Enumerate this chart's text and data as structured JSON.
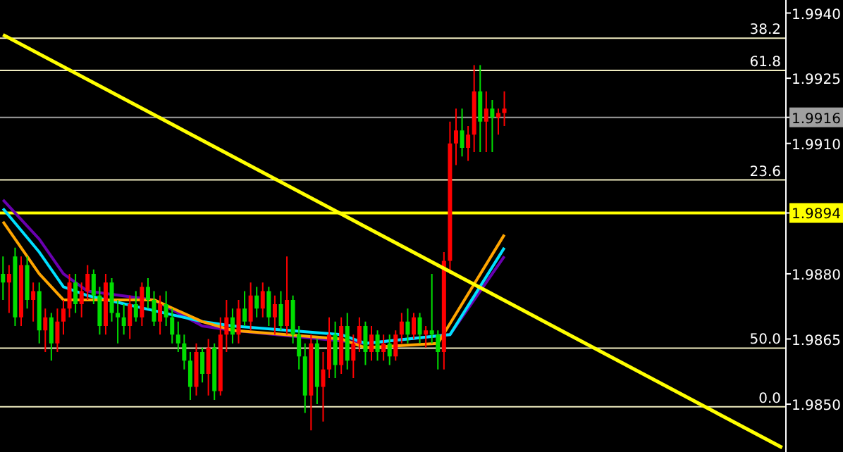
{
  "chart_data": {
    "type": "candlestick",
    "tick_labels": "y",
    "ylim": [
      1.9839,
      1.9943
    ],
    "yticks": [
      {
        "value": 1.994,
        "label": "1.9940"
      },
      {
        "value": 1.9925,
        "label": "1.9925"
      },
      {
        "value": 1.9916,
        "label": "1.9916"
      },
      {
        "value": 1.991,
        "label": "1.9910"
      },
      {
        "value": 1.9894,
        "label": "1.9894"
      },
      {
        "value": 1.988,
        "label": "1.9880"
      },
      {
        "value": 1.9865,
        "label": "1.9865"
      },
      {
        "value": 1.985,
        "label": "1.9850"
      }
    ],
    "categories": [
      null,
      null,
      null,
      null,
      null,
      null,
      null,
      null,
      null,
      null,
      null,
      null,
      null,
      null,
      null,
      null,
      null,
      null,
      null,
      null,
      null,
      null,
      null,
      null,
      null,
      null,
      null,
      null,
      null,
      null,
      null,
      null,
      null,
      null,
      null,
      null,
      null,
      null,
      null,
      null,
      null,
      null,
      null,
      null,
      null,
      null,
      null,
      null,
      null,
      null,
      null,
      null,
      null,
      null,
      null,
      null,
      null,
      null,
      null,
      null,
      null,
      null,
      null,
      null,
      null,
      null,
      null,
      null,
      null,
      null,
      null,
      null,
      null,
      null,
      null,
      null,
      null,
      null,
      null,
      null,
      null,
      null,
      null,
      null,
      null,
      null,
      null,
      null,
      null,
      null,
      null,
      null,
      null,
      null,
      null,
      null,
      null,
      null,
      null,
      null,
      null,
      null,
      null,
      null,
      null,
      null,
      null,
      null,
      null,
      null,
      null,
      null,
      null,
      null,
      null,
      null,
      null,
      null,
      null,
      null,
      null,
      null,
      null,
      null,
      null,
      null,
      null,
      null,
      null,
      null
    ],
    "ohlc": [
      [
        1.988,
        1.9884,
        1.9874,
        1.9878
      ],
      [
        1.9878,
        1.9882,
        1.9871,
        1.988
      ],
      [
        1.9884,
        1.9886,
        1.9868,
        1.987
      ],
      [
        1.987,
        1.9884,
        1.9868,
        1.9882
      ],
      [
        1.9882,
        1.9884,
        1.9872,
        1.9874
      ],
      [
        1.9874,
        1.9878,
        1.9869,
        1.9876
      ],
      [
        1.9876,
        1.9878,
        1.9864,
        1.9867
      ],
      [
        1.9867,
        1.9872,
        1.9862,
        1.987
      ],
      [
        1.987,
        1.9871,
        1.986,
        1.9864
      ],
      [
        1.9864,
        1.9872,
        1.9862,
        1.9869
      ],
      [
        1.9869,
        1.9874,
        1.9866,
        1.9872
      ],
      [
        1.9872,
        1.988,
        1.987,
        1.9878
      ],
      [
        1.9878,
        1.988,
        1.9871,
        1.9873
      ],
      [
        1.9873,
        1.9878,
        1.987,
        1.9876
      ],
      [
        1.9876,
        1.9882,
        1.9874,
        1.988
      ],
      [
        1.988,
        1.9881,
        1.9873,
        1.9875
      ],
      [
        1.9875,
        1.9877,
        1.9866,
        1.9868
      ],
      [
        1.9868,
        1.988,
        1.9866,
        1.9878
      ],
      [
        1.9878,
        1.9879,
        1.9869,
        1.9871
      ],
      [
        1.9871,
        1.9874,
        1.9864,
        1.987
      ],
      [
        1.987,
        1.9873,
        1.9866,
        1.9868
      ],
      [
        1.9868,
        1.9875,
        1.9865,
        1.9873
      ],
      [
        1.9873,
        1.9876,
        1.9869,
        1.987
      ],
      [
        1.987,
        1.9878,
        1.9868,
        1.9877
      ],
      [
        1.9877,
        1.9879,
        1.9872,
        1.9874
      ],
      [
        1.9874,
        1.9876,
        1.9868,
        1.9869
      ],
      [
        1.9869,
        1.9875,
        1.9866,
        1.9873
      ],
      [
        1.9873,
        1.9876,
        1.9868,
        1.987
      ],
      [
        1.987,
        1.9872,
        1.9864,
        1.9866
      ],
      [
        1.9866,
        1.9869,
        1.9862,
        1.9864
      ],
      [
        1.9864,
        1.9866,
        1.9858,
        1.986
      ],
      [
        1.986,
        1.9862,
        1.9851,
        1.9854
      ],
      [
        1.9854,
        1.9864,
        1.9852,
        1.9862
      ],
      [
        1.9862,
        1.9863,
        1.9855,
        1.9857
      ],
      [
        1.9857,
        1.9865,
        1.9852,
        1.9863
      ],
      [
        1.9863,
        1.9864,
        1.9851,
        1.9853
      ],
      [
        1.9853,
        1.987,
        1.9852,
        1.9866
      ],
      [
        1.9866,
        1.9874,
        1.9862,
        1.987
      ],
      [
        1.987,
        1.9872,
        1.9864,
        1.9866
      ],
      [
        1.9866,
        1.9874,
        1.9864,
        1.9872
      ],
      [
        1.9872,
        1.9876,
        1.9868,
        1.9869
      ],
      [
        1.9869,
        1.9878,
        1.9867,
        1.9875
      ],
      [
        1.9875,
        1.9877,
        1.987,
        1.9872
      ],
      [
        1.9872,
        1.9878,
        1.987,
        1.9876
      ],
      [
        1.9876,
        1.9877,
        1.9868,
        1.987
      ],
      [
        1.987,
        1.9875,
        1.9866,
        1.9873
      ],
      [
        1.9873,
        1.9876,
        1.9867,
        1.9868
      ],
      [
        1.9868,
        1.9884,
        1.9866,
        1.9874
      ],
      [
        1.9874,
        1.9875,
        1.9864,
        1.9866
      ],
      [
        1.9866,
        1.9868,
        1.9858,
        1.9861
      ],
      [
        1.9861,
        1.9864,
        1.9848,
        1.9852
      ],
      [
        1.9852,
        1.9866,
        1.9844,
        1.9864
      ],
      [
        1.9864,
        1.9865,
        1.985,
        1.9854
      ],
      [
        1.9854,
        1.9862,
        1.9846,
        1.9858
      ],
      [
        1.9858,
        1.987,
        1.9856,
        1.9866
      ],
      [
        1.9866,
        1.9869,
        1.9856,
        1.9859
      ],
      [
        1.9859,
        1.987,
        1.9857,
        1.9868
      ],
      [
        1.9868,
        1.9871,
        1.9858,
        1.986
      ],
      [
        1.986,
        1.9866,
        1.9856,
        1.9864
      ],
      [
        1.9864,
        1.987,
        1.9862,
        1.9868
      ],
      [
        1.9868,
        1.9869,
        1.9859,
        1.9862
      ],
      [
        1.9862,
        1.9868,
        1.986,
        1.9866
      ],
      [
        1.9866,
        1.9867,
        1.986,
        1.9862
      ],
      [
        1.9862,
        1.9866,
        1.986,
        1.9864
      ],
      [
        1.9864,
        1.9866,
        1.9859,
        1.9861
      ],
      [
        1.9861,
        1.9867,
        1.986,
        1.9866
      ],
      [
        1.9866,
        1.9871,
        1.9864,
        1.9869
      ],
      [
        1.9869,
        1.9872,
        1.9864,
        1.9866
      ],
      [
        1.9866,
        1.9871,
        1.9865,
        1.987
      ],
      [
        1.987,
        1.9871,
        1.9864,
        1.9866
      ],
      [
        1.9866,
        1.9868,
        1.9863,
        1.9867
      ],
      [
        1.9867,
        1.988,
        1.9864,
        1.9866
      ],
      [
        1.9866,
        1.9867,
        1.9858,
        1.9862
      ],
      [
        1.9862,
        1.9885,
        1.9858,
        1.9883
      ],
      [
        1.9883,
        1.9915,
        1.988,
        1.991
      ],
      [
        1.991,
        1.9918,
        1.9905,
        1.9913
      ],
      [
        1.9913,
        1.9918,
        1.9907,
        1.9909
      ],
      [
        1.9909,
        1.9914,
        1.9906,
        1.9912
      ],
      [
        1.9912,
        1.9928,
        1.9908,
        1.9922
      ],
      [
        1.9922,
        1.9928,
        1.9908,
        1.9915
      ],
      [
        1.9915,
        1.9922,
        1.9908,
        1.9918
      ],
      [
        1.9918,
        1.992,
        1.9908,
        1.9916
      ],
      [
        1.9916,
        1.9918,
        1.9912,
        1.9917
      ],
      [
        1.9917,
        1.9922,
        1.9914,
        1.9918
      ],
      null,
      null,
      null,
      null,
      null,
      null,
      null,
      null,
      null,
      null,
      null,
      null,
      null,
      null,
      null,
      null,
      null,
      null,
      null,
      null,
      null,
      null,
      null,
      null,
      null,
      null,
      null,
      null,
      null,
      null,
      null,
      null,
      null,
      null,
      null,
      null,
      null,
      null,
      null,
      null,
      null,
      null,
      null,
      null,
      null,
      null
    ],
    "colors": [
      "#00dd00",
      "#ff0000",
      "#00dd00",
      "#ff0000",
      "#00dd00",
      "#ff0000",
      "#00dd00",
      "#ff0000",
      "#00dd00",
      "#ff0000",
      "#ff0000",
      "#ff0000",
      "#00dd00",
      "#ff0000",
      "#ff0000",
      "#00dd00",
      "#00dd00",
      "#ff0000",
      "#00dd00",
      "#00dd00",
      "#00dd00",
      "#ff0000",
      "#00dd00",
      "#ff0000",
      "#00dd00",
      "#00dd00",
      "#ff0000",
      "#00dd00",
      "#00dd00",
      "#00dd00",
      "#00dd00",
      "#00dd00",
      "#ff0000",
      "#00dd00",
      "#ff0000",
      "#00dd00",
      "#ff0000",
      "#ff0000",
      "#00dd00",
      "#ff0000",
      "#00dd00",
      "#ff0000",
      "#00dd00",
      "#ff0000",
      "#00dd00",
      "#ff0000",
      "#00dd00",
      "#ff0000",
      "#00dd00",
      "#00dd00",
      "#00dd00",
      "#ff0000",
      "#00dd00",
      "#ff0000",
      "#ff0000",
      "#00dd00",
      "#ff0000",
      "#00dd00",
      "#ff0000",
      "#ff0000",
      "#00dd00",
      "#ff0000",
      "#00dd00",
      "#ff0000",
      "#00dd00",
      "#ff0000",
      "#ff0000",
      "#00dd00",
      "#ff0000",
      "#00dd00",
      "#ff0000",
      "#00dd00",
      "#00dd00",
      "#ff0000",
      "#ff0000",
      "#ff0000",
      "#00dd00",
      "#ff0000",
      "#ff0000",
      "#00dd00",
      "#ff0000",
      "#00dd00",
      "#ff0000",
      "#ff0000",
      null,
      null,
      null,
      null,
      null,
      null,
      null,
      null,
      null,
      null,
      null,
      null,
      null,
      null,
      null,
      null,
      null,
      null,
      null,
      null,
      null,
      null,
      null,
      null,
      null,
      null,
      null,
      null,
      null,
      null,
      null,
      null,
      null,
      null,
      null,
      null,
      null,
      null,
      null,
      null,
      null,
      null,
      null,
      null,
      null,
      null
    ],
    "annotations": [
      {
        "text": "38.2",
        "y": 1.99342
      },
      {
        "text": "61.8",
        "y": 1.99268
      },
      {
        "text": "23.6",
        "y": 1.99016
      },
      {
        "text": "50.0",
        "y": 1.98629
      },
      {
        "text": "0.0",
        "y": 1.98494
      }
    ],
    "series": [
      {
        "type": "line",
        "color": "#ffff00",
        "values": [
          1.9935,
          null,
          null,
          null,
          null,
          null,
          null,
          null,
          null,
          null,
          null,
          null,
          null,
          null,
          null,
          null,
          null,
          null,
          null,
          null,
          null,
          null,
          null,
          null,
          null,
          null,
          null,
          null,
          null,
          null,
          null,
          null,
          null,
          null,
          null,
          null,
          null,
          null,
          null,
          null,
          null,
          null,
          null,
          null,
          null,
          null,
          null,
          null,
          null,
          null,
          null,
          null,
          null,
          null,
          null,
          null,
          null,
          null,
          null,
          null,
          null,
          null,
          null,
          null,
          null,
          null,
          null,
          null,
          null,
          null,
          null,
          null,
          null,
          null,
          null,
          null,
          null,
          null,
          null,
          null,
          null,
          null,
          null,
          null,
          null,
          null,
          null,
          null,
          null,
          null,
          null,
          null,
          null,
          null,
          null,
          null,
          null,
          null,
          null,
          null,
          null,
          null,
          null,
          null,
          null,
          null,
          null,
          null,
          null,
          null,
          null,
          null,
          null,
          null,
          null,
          null,
          null,
          null,
          null,
          null,
          null,
          null,
          null,
          null,
          null,
          null,
          null,
          null,
          null,
          1.984
        ]
      },
      {
        "type": "line",
        "color": "#6a00b0",
        "values": [
          1.9897,
          null,
          null,
          null,
          null,
          null,
          1.9888,
          null,
          null,
          null,
          1.988,
          null,
          null,
          null,
          1.9876,
          null,
          null,
          null,
          null,
          null,
          null,
          null,
          null,
          null,
          null,
          1.9874,
          null,
          null,
          null,
          null,
          null,
          null,
          null,
          1.9868,
          null,
          null,
          null,
          null,
          1.9867,
          null,
          null,
          null,
          null,
          null,
          null,
          null,
          null,
          null,
          null,
          null,
          null,
          null,
          null,
          null,
          null,
          null,
          null,
          null,
          null,
          null,
          1.9864,
          null,
          null,
          null,
          null,
          null,
          null,
          null,
          null,
          null,
          null,
          null,
          null,
          null,
          1.9866,
          null,
          null,
          null,
          null,
          null,
          null,
          null,
          null,
          1.9884,
          null,
          null,
          null,
          null,
          null,
          null,
          null,
          null,
          null,
          null,
          null,
          null,
          null,
          null,
          null,
          null,
          null,
          null,
          null,
          null,
          null,
          null,
          null,
          null,
          null,
          null,
          null,
          null,
          null,
          null,
          null,
          null,
          null,
          null,
          null,
          null,
          null,
          null,
          null,
          null,
          null,
          null,
          null,
          null,
          null,
          null
        ]
      },
      {
        "type": "line",
        "color": "#00e0ff",
        "values": [
          1.9895,
          null,
          null,
          null,
          null,
          null,
          1.9885,
          null,
          null,
          null,
          1.9877,
          null,
          null,
          null,
          1.9875,
          null,
          null,
          null,
          null,
          null,
          null,
          null,
          null,
          null,
          null,
          null,
          null,
          null,
          null,
          null,
          null,
          null,
          null,
          1.9869,
          null,
          null,
          null,
          null,
          1.9868,
          null,
          null,
          null,
          null,
          null,
          null,
          null,
          null,
          null,
          null,
          null,
          null,
          null,
          null,
          null,
          null,
          null,
          1.9866,
          null,
          null,
          null,
          1.9864,
          null,
          null,
          null,
          null,
          null,
          null,
          null,
          null,
          null,
          null,
          null,
          null,
          null,
          1.9866,
          null,
          null,
          null,
          null,
          null,
          null,
          null,
          null,
          1.9886,
          null,
          null,
          null,
          null,
          null,
          null,
          null,
          null,
          null,
          null,
          null,
          null,
          null,
          null,
          null,
          null,
          null,
          null,
          null,
          null,
          null,
          null,
          null,
          null,
          null,
          null,
          null,
          null,
          null,
          null,
          null,
          null,
          null,
          null,
          null,
          null,
          null,
          null,
          null,
          null,
          null,
          null,
          null,
          null,
          null,
          null
        ]
      },
      {
        "type": "line",
        "color": "#ffa500",
        "values": [
          1.9892,
          null,
          null,
          null,
          null,
          null,
          1.988,
          null,
          null,
          null,
          1.9874,
          null,
          null,
          null,
          1.9874,
          null,
          null,
          null,
          null,
          null,
          null,
          null,
          null,
          null,
          null,
          1.9874,
          null,
          null,
          null,
          null,
          null,
          null,
          null,
          1.9869,
          null,
          null,
          null,
          null,
          1.9867,
          null,
          null,
          null,
          null,
          null,
          null,
          null,
          null,
          null,
          null,
          null,
          null,
          null,
          null,
          null,
          null,
          null,
          1.9865,
          null,
          null,
          null,
          1.9863,
          null,
          null,
          null,
          null,
          null,
          null,
          null,
          null,
          null,
          null,
          null,
          1.9864,
          null,
          null,
          null,
          null,
          null,
          null,
          null,
          null,
          null,
          null,
          1.9889,
          null,
          null,
          null,
          null,
          null,
          null,
          null,
          null,
          null,
          null,
          null,
          null,
          null,
          null,
          null,
          null,
          null,
          null,
          null,
          null,
          null,
          null,
          null,
          null,
          null,
          null,
          null,
          null,
          null,
          null,
          null,
          null,
          null,
          null,
          null,
          null,
          null,
          null,
          null,
          null,
          null,
          null,
          null,
          null,
          null,
          null
        ]
      }
    ],
    "ref_lines": [
      {
        "axis": "y",
        "value": 1.99342,
        "color": "#f0ecc0"
      },
      {
        "axis": "y",
        "value": 1.99268,
        "color": "#f0ecc0"
      },
      {
        "axis": "y",
        "value": 1.9916,
        "color": "#a0a0a0"
      },
      {
        "axis": "y",
        "value": 1.99016,
        "color": "#f0ecc0"
      },
      {
        "axis": "y",
        "value": 1.9894,
        "color": "#ffff00"
      },
      {
        "axis": "y",
        "value": 1.98629,
        "color": "#f0ecc0"
      },
      {
        "axis": "y",
        "value": 1.98494,
        "color": "#f0ecc0"
      }
    ]
  }
}
